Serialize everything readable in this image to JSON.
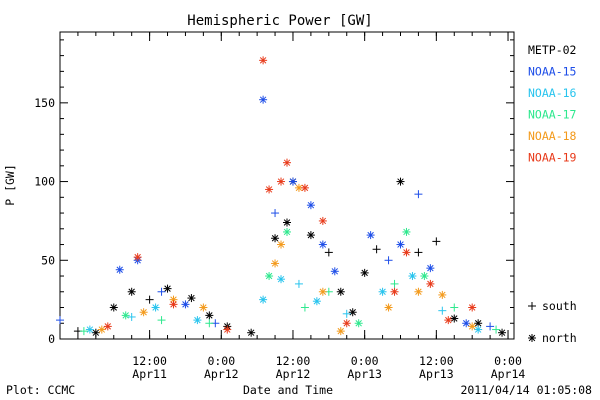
{
  "colors": {
    "METP-02": "#000000",
    "NOAA-15": "#1e4ee8",
    "NOAA-16": "#28c4ee",
    "NOAA-17": "#2ee88e",
    "NOAA-18": "#f39a1c",
    "NOAA-19": "#e83a1a"
  },
  "chart_data": {
    "type": "scatter",
    "title": "Hemispheric Power [GW]",
    "xlabel": "Date and Time",
    "ylabel": "P [GW]",
    "ylim": [
      0,
      195
    ],
    "yticks": [
      0,
      50,
      100,
      150
    ],
    "xlim": [
      "2011-04-10 21:00",
      "2011-04-14 01:00"
    ],
    "xticks": [
      {
        "time": "2011-04-11 12:00",
        "label1": "12:00",
        "label2": "Apr11"
      },
      {
        "time": "2011-04-12 00:00",
        "label1": "0:00",
        "label2": "Apr12"
      },
      {
        "time": "2011-04-12 12:00",
        "label1": "12:00",
        "label2": "Apr12"
      },
      {
        "time": "2011-04-13 00:00",
        "label1": "0:00",
        "label2": "Apr13"
      },
      {
        "time": "2011-04-13 12:00",
        "label1": "12:00",
        "label2": "Apr13"
      },
      {
        "time": "2011-04-14 00:00",
        "label1": "0:00",
        "label2": "Apr14"
      }
    ],
    "legend_position": "right",
    "marker_legend": [
      {
        "symbol": "+",
        "label": "south"
      },
      {
        "symbol": "*",
        "label": "north"
      }
    ],
    "series": [
      {
        "name": "METP-02",
        "color": "#000000",
        "points": [
          [
            "2011-04-11 00:00",
            5,
            "+"
          ],
          [
            "2011-04-11 03:00",
            4,
            "*"
          ],
          [
            "2011-04-11 06:00",
            20,
            "*"
          ],
          [
            "2011-04-11 09:00",
            30,
            "*"
          ],
          [
            "2011-04-11 12:00",
            25,
            "+"
          ],
          [
            "2011-04-11 15:00",
            32,
            "*"
          ],
          [
            "2011-04-11 19:00",
            26,
            "*"
          ],
          [
            "2011-04-11 22:00",
            15,
            "*"
          ],
          [
            "2011-04-12 01:00",
            8,
            "*"
          ],
          [
            "2011-04-12 05:00",
            4,
            "*"
          ],
          [
            "2011-04-12 09:00",
            64,
            "*"
          ],
          [
            "2011-04-12 11:00",
            74,
            "*"
          ],
          [
            "2011-04-12 12:00",
            100,
            "*"
          ],
          [
            "2011-04-12 15:00",
            66,
            "*"
          ],
          [
            "2011-04-12 18:00",
            55,
            "+"
          ],
          [
            "2011-04-12 20:00",
            30,
            "*"
          ],
          [
            "2011-04-12 22:00",
            17,
            "*"
          ],
          [
            "2011-04-13 00:00",
            42,
            "*"
          ],
          [
            "2011-04-13 02:00",
            57,
            "+"
          ],
          [
            "2011-04-13 06:00",
            100,
            "*"
          ],
          [
            "2011-04-13 09:00",
            55,
            "+"
          ],
          [
            "2011-04-13 12:00",
            62,
            "+"
          ],
          [
            "2011-04-13 15:00",
            13,
            "*"
          ],
          [
            "2011-04-13 19:00",
            10,
            "*"
          ],
          [
            "2011-04-13 23:00",
            4,
            "*"
          ]
        ]
      },
      {
        "name": "NOAA-15",
        "color": "#1e4ee8",
        "points": [
          [
            "2011-04-10 21:00",
            12,
            "+"
          ],
          [
            "2011-04-11 07:00",
            44,
            "*"
          ],
          [
            "2011-04-11 10:00",
            50,
            "*"
          ],
          [
            "2011-04-11 14:00",
            30,
            "+"
          ],
          [
            "2011-04-11 18:00",
            22,
            "*"
          ],
          [
            "2011-04-11 23:00",
            10,
            "+"
          ],
          [
            "2011-04-12 07:00",
            152,
            "*"
          ],
          [
            "2011-04-12 09:00",
            80,
            "+"
          ],
          [
            "2011-04-12 12:00",
            100,
            "*"
          ],
          [
            "2011-04-12 15:00",
            85,
            "*"
          ],
          [
            "2011-04-12 17:00",
            60,
            "*"
          ],
          [
            "2011-04-12 19:00",
            43,
            "*"
          ],
          [
            "2011-04-13 01:00",
            66,
            "*"
          ],
          [
            "2011-04-13 04:00",
            50,
            "+"
          ],
          [
            "2011-04-13 06:00",
            60,
            "*"
          ],
          [
            "2011-04-13 09:00",
            92,
            "+"
          ],
          [
            "2011-04-13 11:00",
            45,
            "*"
          ],
          [
            "2011-04-13 17:00",
            10,
            "*"
          ],
          [
            "2011-04-13 21:00",
            8,
            "+"
          ]
        ]
      },
      {
        "name": "NOAA-16",
        "color": "#28c4ee",
        "points": [
          [
            "2011-04-11 02:00",
            6,
            "*"
          ],
          [
            "2011-04-11 09:00",
            14,
            "+"
          ],
          [
            "2011-04-11 13:00",
            20,
            "*"
          ],
          [
            "2011-04-11 20:00",
            12,
            "*"
          ],
          [
            "2011-04-12 07:00",
            25,
            "*"
          ],
          [
            "2011-04-12 10:00",
            38,
            "*"
          ],
          [
            "2011-04-12 13:00",
            35,
            "+"
          ],
          [
            "2011-04-12 16:00",
            24,
            "*"
          ],
          [
            "2011-04-12 21:00",
            16,
            "+"
          ],
          [
            "2011-04-13 03:00",
            30,
            "*"
          ],
          [
            "2011-04-13 08:00",
            40,
            "*"
          ],
          [
            "2011-04-13 13:00",
            18,
            "+"
          ],
          [
            "2011-04-13 19:00",
            6,
            "*"
          ]
        ]
      },
      {
        "name": "NOAA-17",
        "color": "#2ee88e",
        "points": [
          [
            "2011-04-11 01:00",
            5,
            "+"
          ],
          [
            "2011-04-11 08:00",
            15,
            "*"
          ],
          [
            "2011-04-11 14:00",
            12,
            "+"
          ],
          [
            "2011-04-11 22:00",
            10,
            "+"
          ],
          [
            "2011-04-12 08:00",
            40,
            "*"
          ],
          [
            "2011-04-12 11:00",
            68,
            "*"
          ],
          [
            "2011-04-12 14:00",
            20,
            "+"
          ],
          [
            "2011-04-12 18:00",
            30,
            "+"
          ],
          [
            "2011-04-12 23:00",
            10,
            "*"
          ],
          [
            "2011-04-13 05:00",
            35,
            "+"
          ],
          [
            "2011-04-13 07:00",
            68,
            "*"
          ],
          [
            "2011-04-13 10:00",
            40,
            "*"
          ],
          [
            "2011-04-13 15:00",
            20,
            "+"
          ],
          [
            "2011-04-13 22:00",
            6,
            "+"
          ]
        ]
      },
      {
        "name": "NOAA-18",
        "color": "#f39a1c",
        "points": [
          [
            "2011-04-11 04:00",
            6,
            "*"
          ],
          [
            "2011-04-11 11:00",
            17,
            "*"
          ],
          [
            "2011-04-11 16:00",
            25,
            "*"
          ],
          [
            "2011-04-11 21:00",
            20,
            "*"
          ],
          [
            "2011-04-12 09:00",
            48,
            "*"
          ],
          [
            "2011-04-12 10:00",
            60,
            "*"
          ],
          [
            "2011-04-12 13:00",
            96,
            "*"
          ],
          [
            "2011-04-12 17:00",
            30,
            "*"
          ],
          [
            "2011-04-12 20:00",
            5,
            "*"
          ],
          [
            "2011-04-13 04:00",
            20,
            "*"
          ],
          [
            "2011-04-13 09:00",
            30,
            "*"
          ],
          [
            "2011-04-13 13:00",
            28,
            "*"
          ],
          [
            "2011-04-13 18:00",
            8,
            "*"
          ]
        ]
      },
      {
        "name": "NOAA-19",
        "color": "#e83a1a",
        "points": [
          [
            "2011-04-11 05:00",
            8,
            "*"
          ],
          [
            "2011-04-11 10:00",
            52,
            "*"
          ],
          [
            "2011-04-11 16:00",
            22,
            "*"
          ],
          [
            "2011-04-12 01:00",
            6,
            "*"
          ],
          [
            "2011-04-12 07:00",
            177,
            "*"
          ],
          [
            "2011-04-12 08:00",
            95,
            "*"
          ],
          [
            "2011-04-12 10:00",
            100,
            "*"
          ],
          [
            "2011-04-12 11:00",
            112,
            "*"
          ],
          [
            "2011-04-12 14:00",
            96,
            "*"
          ],
          [
            "2011-04-12 17:00",
            75,
            "*"
          ],
          [
            "2011-04-12 21:00",
            10,
            "*"
          ],
          [
            "2011-04-13 05:00",
            30,
            "*"
          ],
          [
            "2011-04-13 07:00",
            55,
            "*"
          ],
          [
            "2011-04-13 11:00",
            35,
            "*"
          ],
          [
            "2011-04-13 14:00",
            12,
            "*"
          ],
          [
            "2011-04-13 18:00",
            20,
            "*"
          ]
        ]
      }
    ]
  },
  "footer": {
    "left": "Plot: CCMC",
    "right": "2011/04/14 01:05:08"
  }
}
